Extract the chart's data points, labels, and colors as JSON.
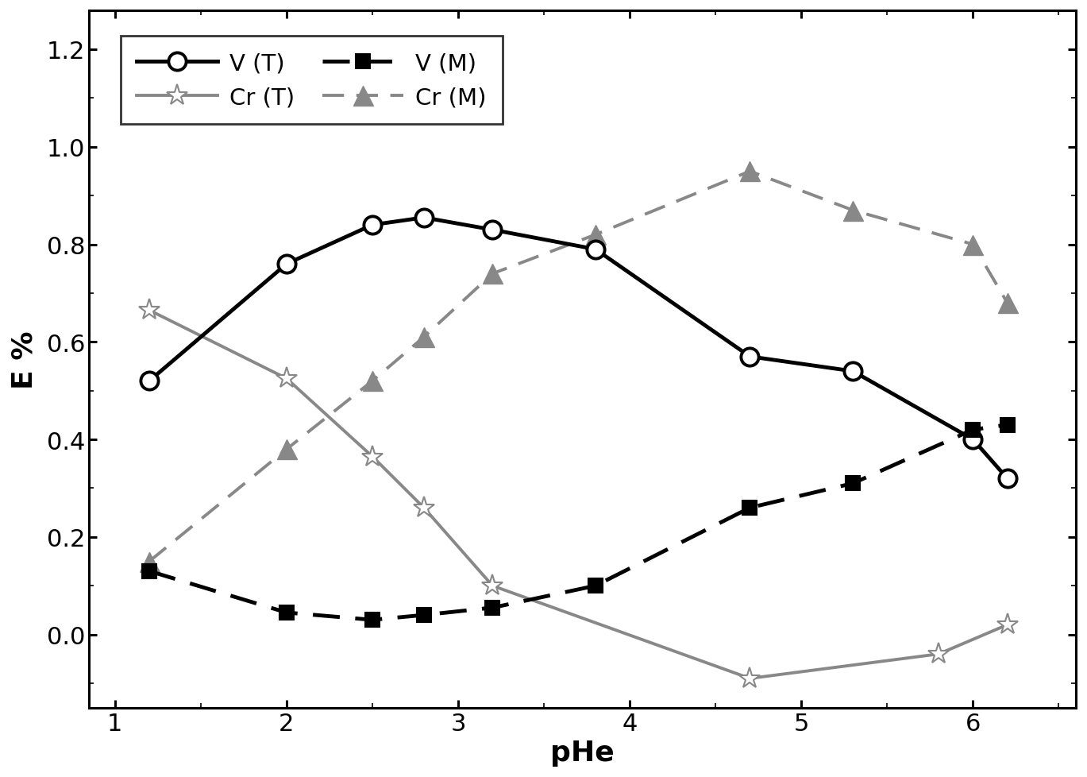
{
  "V_T_x": [
    1.2,
    2.0,
    2.5,
    2.8,
    3.2,
    3.8,
    4.7,
    5.3,
    6.0,
    6.2
  ],
  "V_T_y": [
    0.52,
    0.76,
    0.84,
    0.855,
    0.83,
    0.79,
    0.57,
    0.54,
    0.4,
    0.32
  ],
  "Cr_T_x": [
    1.2,
    2.0,
    2.5,
    2.8,
    3.2,
    4.7,
    5.8,
    6.2
  ],
  "Cr_T_y": [
    0.665,
    0.525,
    0.365,
    0.26,
    0.1,
    -0.09,
    -0.04,
    0.02
  ],
  "V_M_x": [
    1.2,
    2.0,
    2.5,
    2.8,
    3.2,
    3.8,
    4.7,
    5.3,
    6.0,
    6.2
  ],
  "V_M_y": [
    0.13,
    0.045,
    0.03,
    0.04,
    0.055,
    0.1,
    0.26,
    0.31,
    0.42,
    0.43
  ],
  "Cr_M_x": [
    1.2,
    2.0,
    2.5,
    2.8,
    3.2,
    3.8,
    4.7,
    5.3,
    6.0,
    6.2
  ],
  "Cr_M_y": [
    0.15,
    0.38,
    0.52,
    0.61,
    0.74,
    0.82,
    0.95,
    0.87,
    0.8,
    0.68
  ],
  "xlim": [
    0.85,
    6.6
  ],
  "ylim": [
    -0.15,
    1.28
  ],
  "xlabel": "pHe",
  "ylabel": "E %",
  "xticks": [
    1,
    2,
    3,
    4,
    5,
    6
  ],
  "yticks": [
    0.0,
    0.2,
    0.4,
    0.6,
    0.8,
    1.0,
    1.2
  ],
  "line_color_VT": "#000000",
  "line_color_CrT": "#888888",
  "line_color_VM": "#000000",
  "line_color_CrM": "#888888",
  "marker_size_circle": 16,
  "marker_size_star": 20,
  "marker_size_square": 13,
  "marker_size_triangle": 18,
  "linewidth_VT": 3.5,
  "linewidth_CrT": 2.8,
  "linewidth_VM": 3.5,
  "linewidth_CrM": 2.8,
  "fontsize_axis_label": 26,
  "fontsize_tick": 22,
  "fontsize_legend": 21
}
